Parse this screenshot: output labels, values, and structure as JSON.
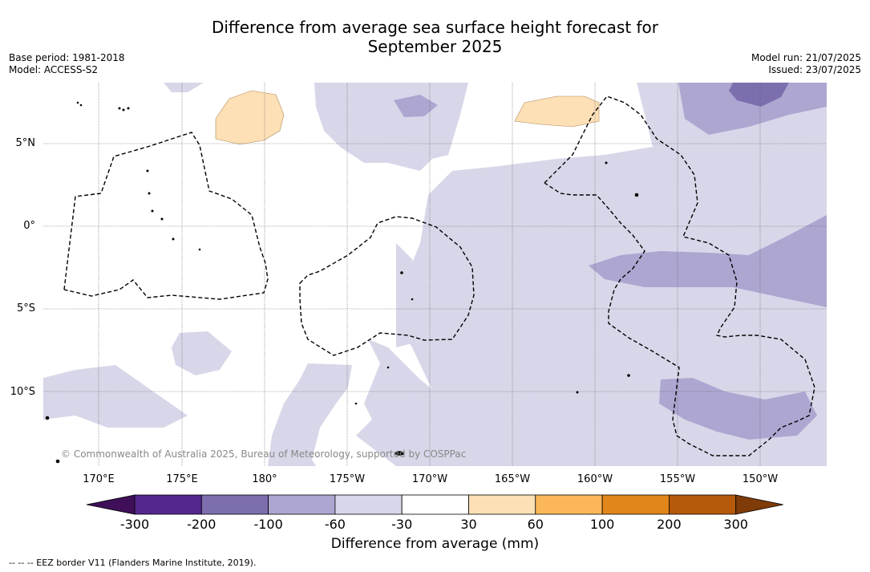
{
  "title": "Difference from average sea surface height forecast for September 2025",
  "title_lines": [
    "Difference from average sea surface height forecast for",
    "September 2025"
  ],
  "base_period": "Base period: 1981-2018",
  "model": "Model: ACCESS-S2",
  "model_run": "Model run: 21/07/2025",
  "issued": "Issued: 23/07/2025",
  "lat_labels": [
    "5°N",
    "0°",
    "5°S",
    "10°S"
  ],
  "lon_labels": [
    "170°E",
    "175°E",
    "180°",
    "175°W",
    "170°W",
    "165°W",
    "160°W",
    "155°W",
    "150°W"
  ],
  "colorbar": {
    "label": "Difference from average (mm)",
    "ticks": [
      "-300",
      "-200",
      "-100",
      "-60",
      "-30",
      "30",
      "60",
      "100",
      "200",
      "300"
    ],
    "colors": [
      "#3f0f59",
      "#54278f",
      "#7d6eae",
      "#aca6d1",
      "#d7d7e9",
      "#ffffff",
      "#fde0b6",
      "#fbb75a",
      "#e1861a",
      "#b55a0a",
      "#7f3b08"
    ]
  },
  "copyright": "© Commonwealth of Australia 2025, Bureau of Meteorology, supported by COSPPac",
  "footer": "-- -- -- EEZ border V11 (Flanders Marine Institute, 2019)."
}
